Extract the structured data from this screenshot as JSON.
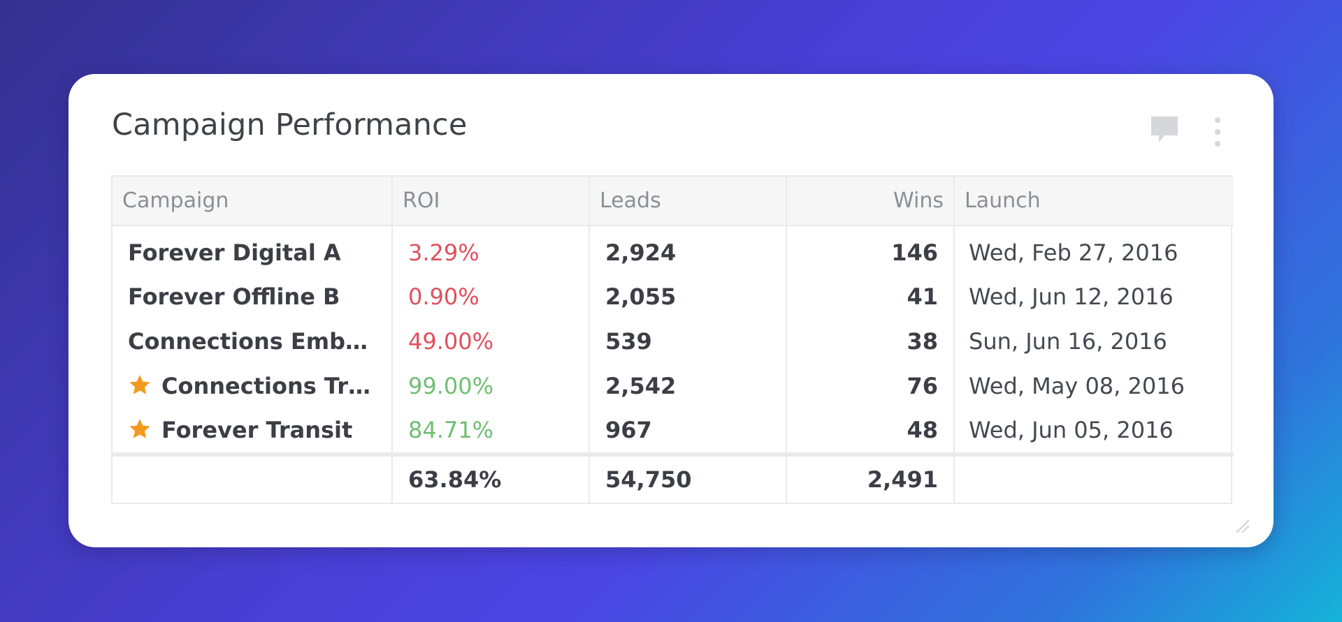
{
  "card": {
    "title": "Campaign Performance",
    "icons": [
      "comment-icon",
      "more-vertical-icon",
      "resize-handle-icon"
    ]
  },
  "table": {
    "headers": {
      "campaign": "Campaign",
      "roi": "ROI",
      "leads": "Leads",
      "wins": "Wins",
      "launch": "Launch"
    },
    "rows": [
      {
        "name": "Forever Digital A",
        "starred": false,
        "roi": "3.29%",
        "roi_status": "negative",
        "leads": "2,924",
        "wins": "146",
        "launch": "Wed, Feb 27, 2016"
      },
      {
        "name": "Forever Offline B",
        "starred": false,
        "roi": "0.90%",
        "roi_status": "negative",
        "leads": "2,055",
        "wins": "41",
        "launch": "Wed, Jun 12, 2016"
      },
      {
        "name": "Connections Embed...",
        "starred": false,
        "roi": "49.00%",
        "roi_status": "negative",
        "leads": "539",
        "wins": "38",
        "launch": "Sun, Jun 16, 2016"
      },
      {
        "name": "Connections Tra...",
        "starred": true,
        "roi": "99.00%",
        "roi_status": "positive",
        "leads": "2,542",
        "wins": "76",
        "launch": "Wed, May 08, 2016"
      },
      {
        "name": "Forever Transit",
        "starred": true,
        "roi": "84.71%",
        "roi_status": "positive",
        "leads": "967",
        "wins": "48",
        "launch": "Wed, Jun 05, 2016"
      }
    ],
    "totals": {
      "campaign": "",
      "roi": "63.84%",
      "leads": "54,750",
      "wins": "2,491",
      "launch": ""
    }
  },
  "colors": {
    "negative": "#e0505e",
    "positive": "#6fbf73",
    "star": "#f29a1f",
    "icon_gray": "#d5d7da"
  }
}
